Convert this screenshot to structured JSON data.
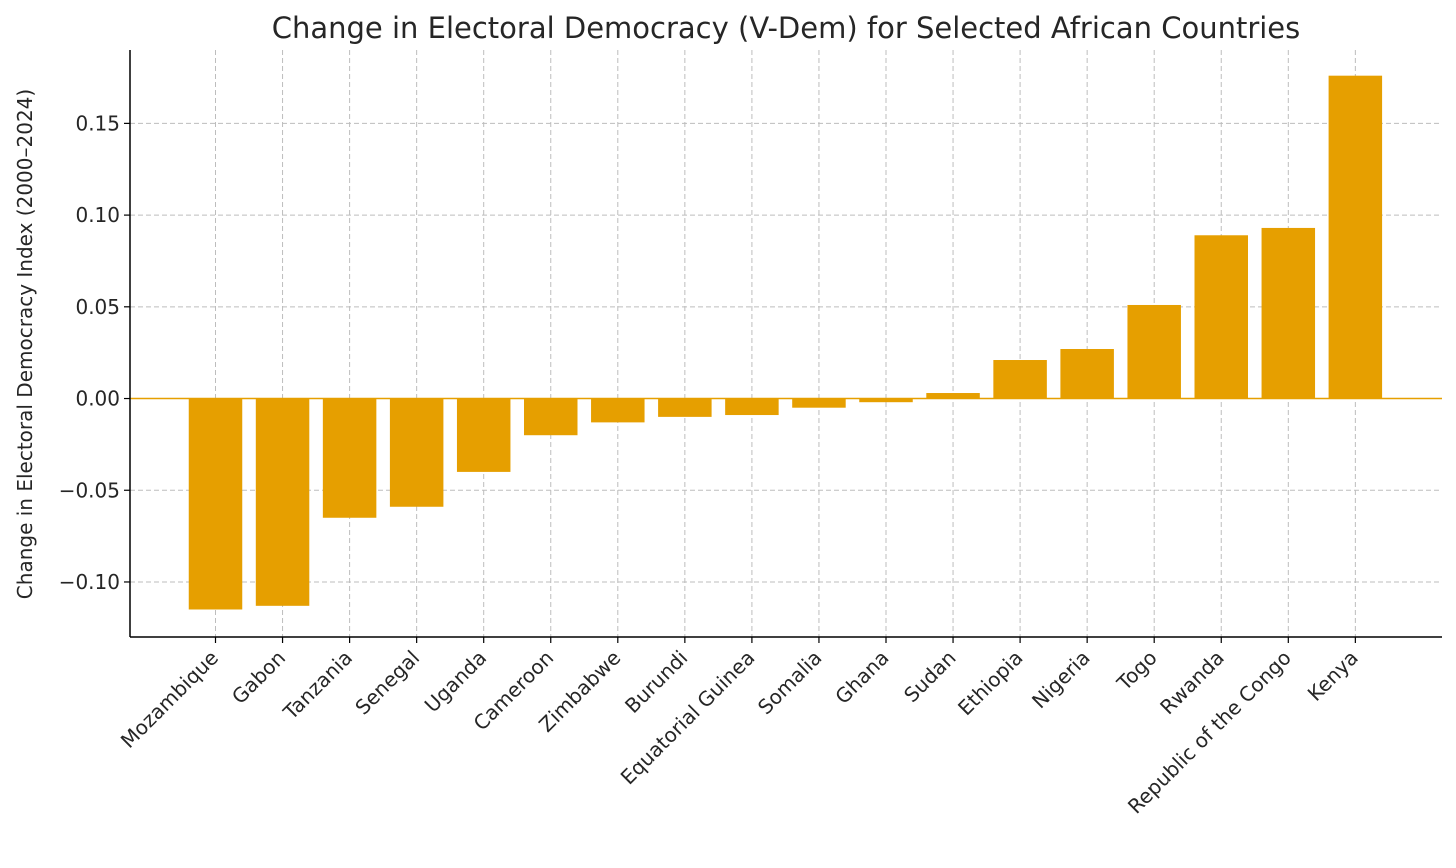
{
  "chart_data": {
    "type": "bar",
    "title": "Change in Electoral Democracy (V-Dem) for Selected African Countries",
    "xlabel": "",
    "ylabel": "Change in Electoral Democracy Index (2000–2024)",
    "categories": [
      "Mozambique",
      "Gabon",
      "Tanzania",
      "Senegal",
      "Uganda",
      "Cameroon",
      "Zimbabwe",
      "Burundi",
      "Equatorial Guinea",
      "Somalia",
      "Ghana",
      "Sudan",
      "Ethiopia",
      "Nigeria",
      "Togo",
      "Rwanda",
      "Republic of the Congo",
      "Kenya"
    ],
    "values": [
      -0.115,
      -0.113,
      -0.065,
      -0.059,
      -0.04,
      -0.02,
      -0.013,
      -0.01,
      -0.009,
      -0.005,
      -0.002,
      0.003,
      0.021,
      0.027,
      0.051,
      0.089,
      0.093,
      0.176
    ],
    "ylim": [
      -0.13,
      0.19
    ],
    "yticks": [
      -0.1,
      -0.05,
      0.0,
      0.05,
      0.1,
      0.15
    ],
    "ytick_labels": [
      "−0.10",
      "−0.05",
      "0.00",
      "0.05",
      "0.10",
      "0.15"
    ],
    "zero_line": true,
    "grid": true,
    "legend": "none",
    "bar_color": "#E69F00",
    "zero_line_color": "#E69F00",
    "grid_color": "#BDBDBD",
    "text_color": "#262626"
  }
}
